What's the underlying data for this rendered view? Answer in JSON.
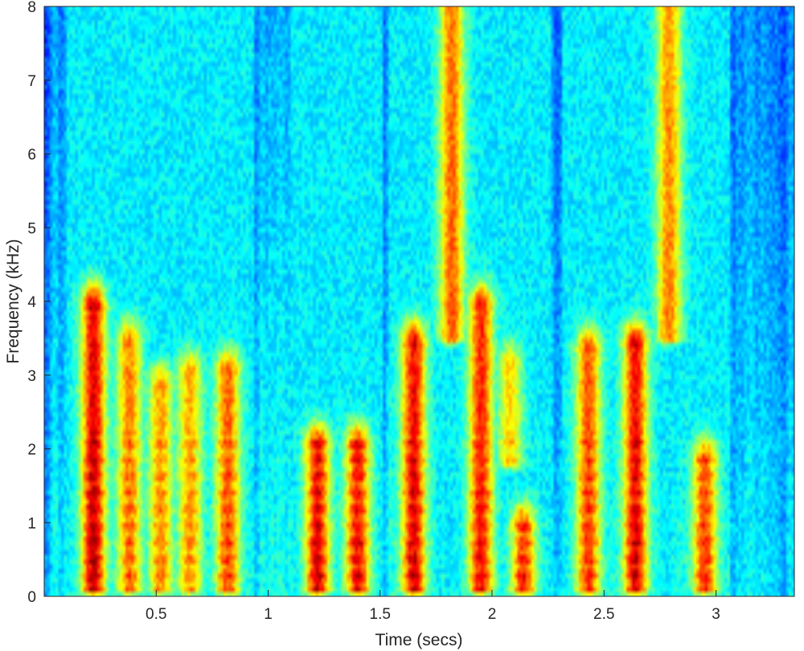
{
  "chart_data": {
    "type": "heatmap",
    "title": "",
    "xlabel": "Time (secs)",
    "ylabel": "Frequency (kHz)",
    "xlim": [
      0,
      3.35
    ],
    "ylim": [
      0,
      8
    ],
    "xticks": [
      0.5,
      1,
      1.5,
      2,
      2.5,
      3
    ],
    "xtick_labels": [
      "0.5",
      "1",
      "1.5",
      "2",
      "2.5",
      "3"
    ],
    "yticks": [
      0,
      1,
      2,
      3,
      4,
      5,
      6,
      7,
      8
    ],
    "ytick_labels": [
      "0",
      "1",
      "2",
      "3",
      "4",
      "5",
      "6",
      "7",
      "8"
    ],
    "colormap": "jet",
    "grid": false,
    "legend": "none",
    "time_resolution_secs": 0.0125,
    "freq_resolution_khz": 0.0625,
    "energy_events": [
      {
        "t": 0.22,
        "f_lo": 0.1,
        "f_hi": 3.9,
        "level": 0.95
      },
      {
        "t": 0.38,
        "f_lo": 0.1,
        "f_hi": 3.4,
        "level": 0.78
      },
      {
        "t": 0.52,
        "f_lo": 0.1,
        "f_hi": 2.8,
        "level": 0.75
      },
      {
        "t": 0.65,
        "f_lo": 0.1,
        "f_hi": 3.0,
        "level": 0.74
      },
      {
        "t": 0.82,
        "f_lo": 0.1,
        "f_hi": 3.0,
        "level": 0.82
      },
      {
        "t": 1.22,
        "f_lo": 0.1,
        "f_hi": 2.0,
        "level": 0.92
      },
      {
        "t": 1.4,
        "f_lo": 0.1,
        "f_hi": 2.0,
        "level": 0.9
      },
      {
        "t": 1.65,
        "f_lo": 0.1,
        "f_hi": 3.4,
        "level": 0.92
      },
      {
        "t": 1.82,
        "f_lo": 3.5,
        "f_hi": 8.0,
        "level": 0.8
      },
      {
        "t": 1.95,
        "f_lo": 0.1,
        "f_hi": 3.9,
        "level": 0.88
      },
      {
        "t": 2.14,
        "f_lo": 0.1,
        "f_hi": 0.9,
        "level": 0.86
      },
      {
        "t": 2.08,
        "f_lo": 1.8,
        "f_hi": 3.1,
        "level": 0.68
      },
      {
        "t": 2.43,
        "f_lo": 0.1,
        "f_hi": 3.3,
        "level": 0.84
      },
      {
        "t": 2.64,
        "f_lo": 0.1,
        "f_hi": 3.4,
        "level": 0.92
      },
      {
        "t": 2.79,
        "f_lo": 3.5,
        "f_hi": 8.0,
        "level": 0.76
      },
      {
        "t": 2.95,
        "f_lo": 0.1,
        "f_hi": 1.8,
        "level": 0.84
      }
    ]
  }
}
